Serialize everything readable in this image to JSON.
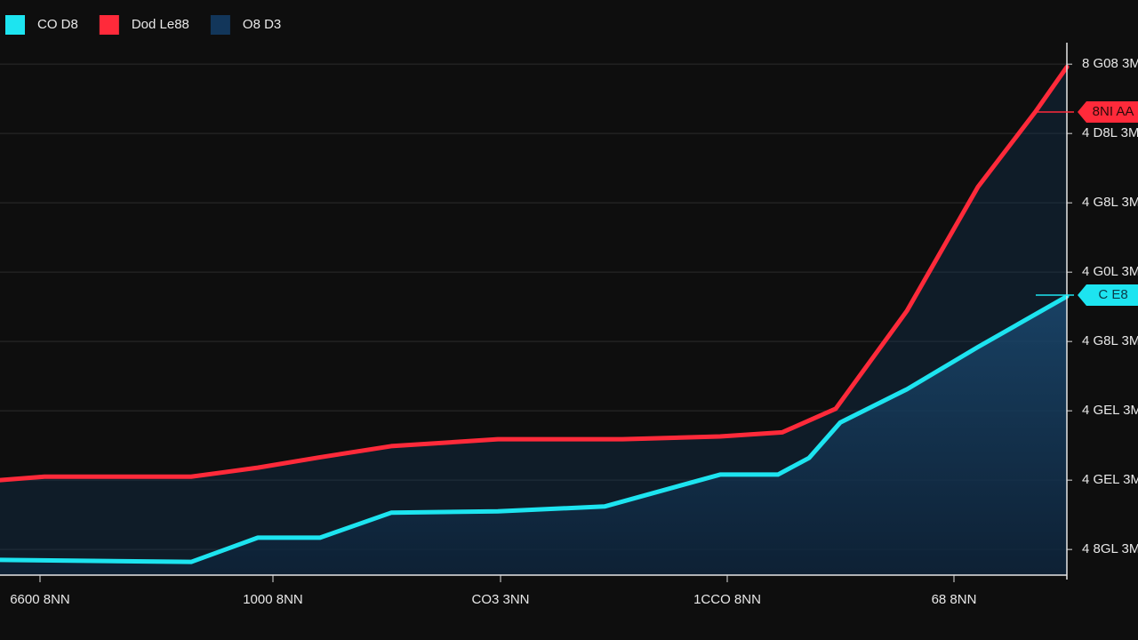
{
  "chart_data": {
    "type": "line",
    "legend": "top-left",
    "grid": true,
    "xlim": [
      0,
      1200
    ],
    "xticks": [
      {
        "value": 45,
        "label": "6600 8NN"
      },
      {
        "value": 307,
        "label": "1000 8NN"
      },
      {
        "value": 563,
        "label": "CO3 3NN"
      },
      {
        "value": 818,
        "label": "1CCO 8NN"
      },
      {
        "value": 1073,
        "label": "68 8NN"
      }
    ],
    "ylim": [
      0.63,
      8.31
    ],
    "yticks": [
      {
        "value": 1,
        "label": "4 8GL 3M"
      },
      {
        "value": 2,
        "label": "4 GEL 3M"
      },
      {
        "value": 3,
        "label": "4 GEL 3M"
      },
      {
        "value": 4,
        "label": "4 G8L 3M"
      },
      {
        "value": 5,
        "label": "4 G0L 3M"
      },
      {
        "value": 6,
        "label": "4 G8L 3M"
      },
      {
        "value": 7,
        "label": "4 D8L 3M"
      },
      {
        "value": 8,
        "label": "8 G08 3M"
      }
    ],
    "fill": {
      "name": "O8 D3",
      "color": "#12365a"
    },
    "series": [
      {
        "name": "CO D8",
        "color": "#1de4f0",
        "x": [
          0,
          215,
          290,
          360,
          440,
          560,
          680,
          810,
          875,
          910,
          945,
          1020,
          1100,
          1200
        ],
        "values": [
          0.85,
          0.82,
          1.17,
          1.17,
          1.53,
          1.55,
          1.62,
          2.08,
          2.08,
          2.32,
          2.83,
          3.31,
          3.92,
          4.65
        ],
        "tag": "C E8"
      },
      {
        "name": "Dod Le88",
        "color": "#ff2a3a",
        "x": [
          0,
          50,
          215,
          290,
          360,
          440,
          560,
          700,
          810,
          880,
          940,
          1020,
          1100,
          1165,
          1200
        ],
        "values": [
          2.0,
          2.05,
          2.05,
          2.18,
          2.33,
          2.49,
          2.59,
          2.59,
          2.63,
          2.69,
          3.03,
          4.44,
          6.23,
          7.32,
          7.96
        ],
        "tag": "8NI AA"
      }
    ]
  }
}
